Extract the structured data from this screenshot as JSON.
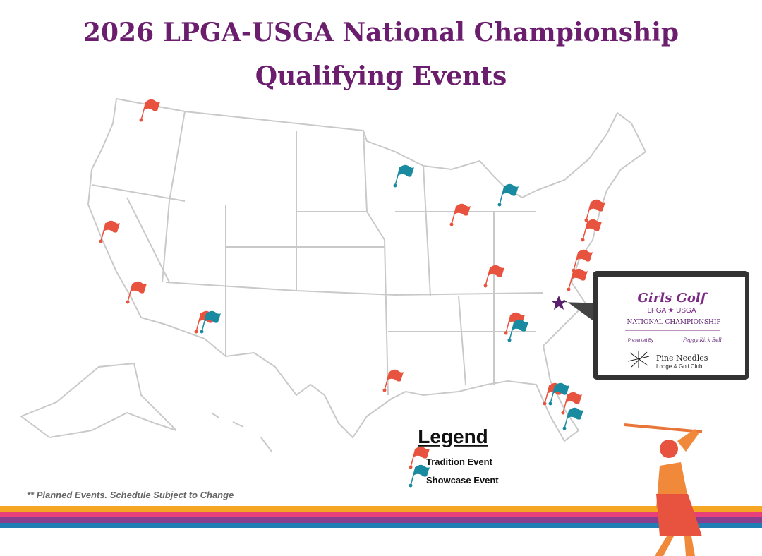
{
  "header": {
    "title_line1": "2026 LPGA-USGA National Championship",
    "title_line2": "Qualifying Events"
  },
  "legend": {
    "title": "Legend",
    "items": [
      "Tradition Event",
      "Showcase Event"
    ]
  },
  "footnote": "** Planned Events.  Schedule Subject to Change",
  "logo": {
    "brand": "Girls Golf",
    "sub": "LPGA ★ USGA",
    "event": "NATIONAL CHAMPIONSHIP",
    "presented": "Presented By",
    "sponsor": "Peggy Kirk Bell",
    "venue": "Pine Needles",
    "venue_sub": "Lodge & Golf Club"
  }
}
